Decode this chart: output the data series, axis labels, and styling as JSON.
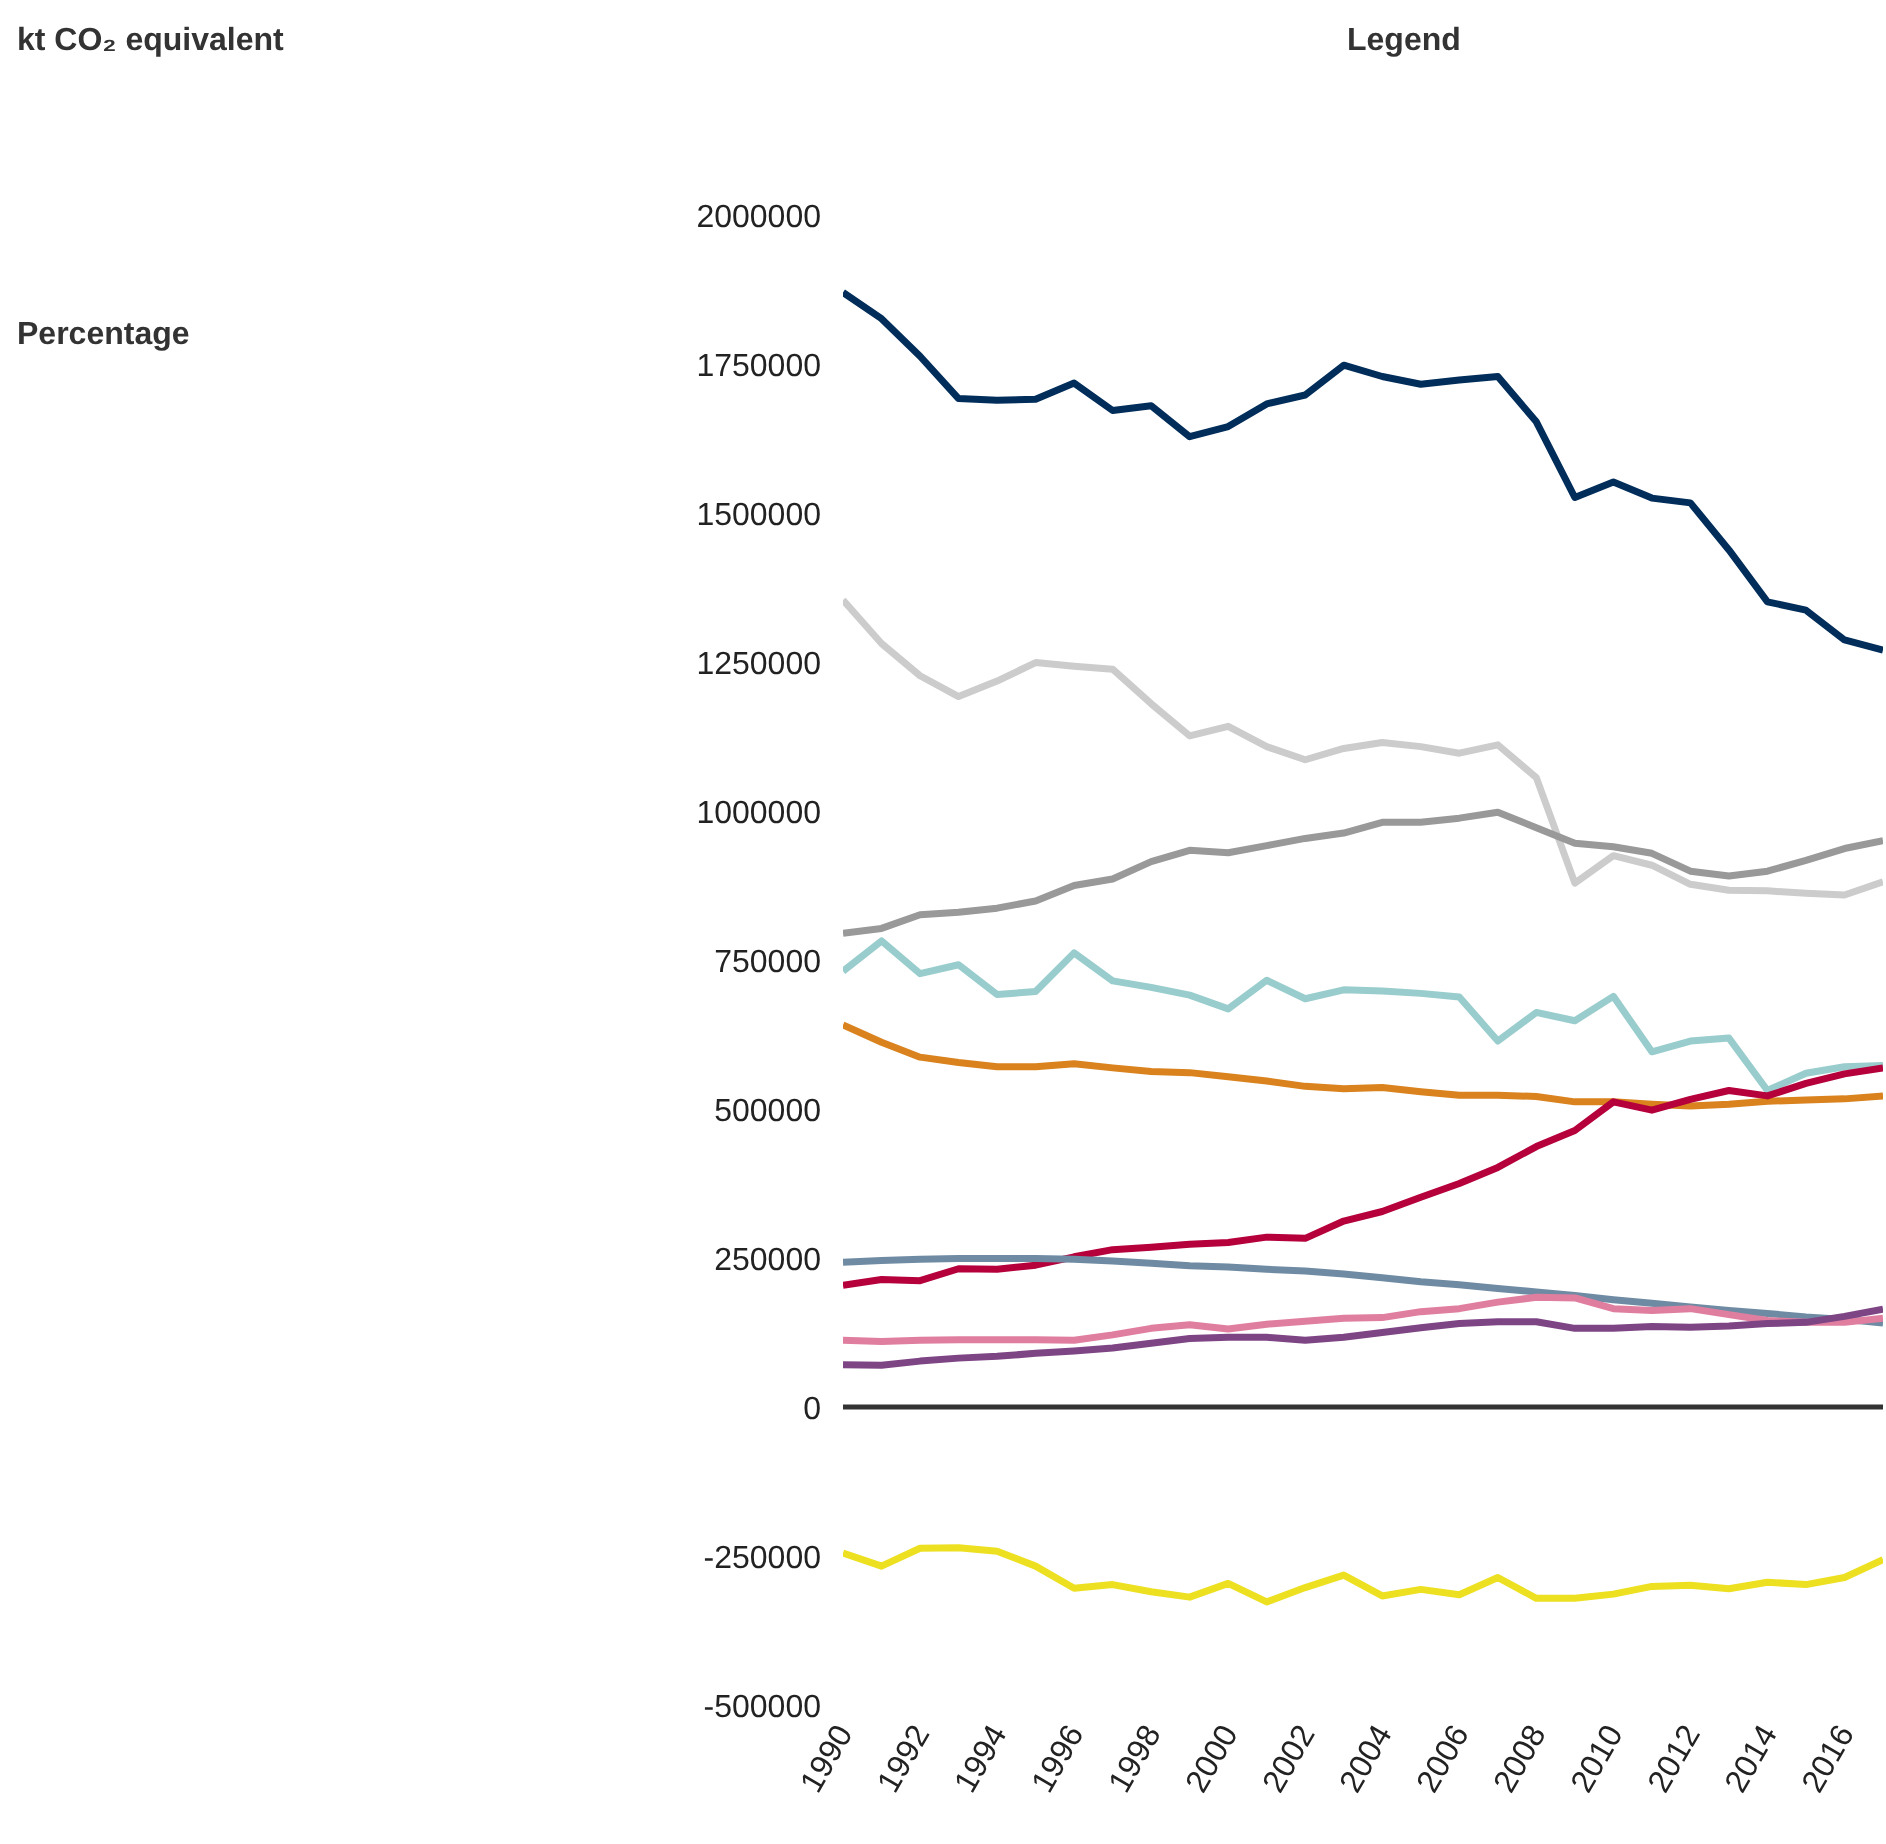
{
  "chart_data": {
    "type": "line",
    "legend_title": "Legend",
    "annotations": [
      "kt CO₂ equivalent",
      "Percentage"
    ],
    "x": [
      1990,
      1991,
      1992,
      1993,
      1994,
      1995,
      1996,
      1997,
      1998,
      1999,
      2000,
      2001,
      2002,
      2003,
      2004,
      2005,
      2006,
      2007,
      2008,
      2009,
      2010,
      2011,
      2012,
      2013,
      2014,
      2015,
      2016,
      2017
    ],
    "xlim": [
      1990,
      2017
    ],
    "xticks": [
      1990,
      1992,
      1994,
      1996,
      1998,
      2000,
      2002,
      2004,
      2006,
      2008,
      2010,
      2012,
      2014,
      2016
    ],
    "ylim": [
      -500000,
      2000000
    ],
    "yticks": [
      -500000,
      -250000,
      0,
      250000,
      500000,
      750000,
      1000000,
      1250000,
      1500000,
      1750000,
      2000000
    ],
    "grid": false,
    "line_style": "solid",
    "marker": "none",
    "ref_lines": [
      {
        "axis": "y",
        "value": 0,
        "label": null,
        "color": "#333333"
      }
    ],
    "series": [
      {
        "color": "#002d5a",
        "values": [
          1870000,
          1826000,
          1763000,
          1692000,
          1689000,
          1691000,
          1718000,
          1672000,
          1680000,
          1628000,
          1645000,
          1683000,
          1698000,
          1748000,
          1729000,
          1716000,
          1723000,
          1729000,
          1653000,
          1526000,
          1552000,
          1525000,
          1517000,
          1438000,
          1351000,
          1337000,
          1287000,
          1270000
        ]
      },
      {
        "color": "#cccccc",
        "values": [
          1354000,
          1281000,
          1227000,
          1192000,
          1218000,
          1249000,
          1243000,
          1238000,
          1180000,
          1126000,
          1142000,
          1108000,
          1086000,
          1105000,
          1115000,
          1108000,
          1097000,
          1111000,
          1056000,
          879000,
          925000,
          909000,
          877000,
          867000,
          866000,
          862000,
          859000,
          881000
        ]
      },
      {
        "color": "#999999",
        "values": [
          795000,
          803000,
          826000,
          830000,
          837000,
          849000,
          875000,
          886000,
          915000,
          934000,
          930000,
          942000,
          954000,
          963000,
          981000,
          981000,
          988000,
          998000,
          972000,
          946000,
          940000,
          929000,
          899000,
          891000,
          899000,
          917000,
          937000,
          950000
        ]
      },
      {
        "color": "#99cccc",
        "values": [
          731000,
          782000,
          727000,
          742000,
          692000,
          697000,
          762000,
          715000,
          704000,
          691000,
          668000,
          716000,
          685000,
          700000,
          698000,
          694000,
          688000,
          614000,
          662000,
          648000,
          689000,
          596000,
          614000,
          619000,
          531000,
          560000,
          571000,
          573000
        ]
      },
      {
        "color": "#d9821e",
        "values": [
          641000,
          612000,
          587000,
          578000,
          571000,
          571000,
          576000,
          569000,
          563000,
          561000,
          554000,
          547000,
          538000,
          534000,
          536000,
          529000,
          523000,
          523000,
          521000,
          512000,
          512000,
          508000,
          505000,
          508000,
          513000,
          515000,
          517000,
          522000
        ]
      },
      {
        "color": "#b5003c",
        "values": [
          204000,
          214000,
          212000,
          232000,
          231000,
          238000,
          252000,
          264000,
          268000,
          273000,
          276000,
          285000,
          283000,
          312000,
          328000,
          352000,
          375000,
          402000,
          437000,
          464000,
          512000,
          498000,
          516000,
          531000,
          522000,
          543000,
          559000,
          569000
        ]
      },
      {
        "color": "#6f8ba3",
        "values": [
          243000,
          246000,
          248000,
          249000,
          249000,
          249000,
          248000,
          245000,
          241000,
          237000,
          235000,
          231000,
          228000,
          223000,
          217000,
          210000,
          205000,
          199000,
          193000,
          187000,
          180000,
          174000,
          168000,
          162000,
          157000,
          151000,
          147000,
          141000
        ]
      },
      {
        "color": "#e07ea0",
        "values": [
          112000,
          110000,
          112000,
          113000,
          113000,
          113000,
          112000,
          121000,
          132000,
          138000,
          131000,
          139000,
          144000,
          149000,
          150000,
          160000,
          165000,
          176000,
          184000,
          183000,
          165000,
          162000,
          165000,
          155000,
          145000,
          142000,
          142000,
          149000
        ]
      },
      {
        "color": "#7e4585",
        "values": [
          71000,
          70000,
          77000,
          82000,
          85000,
          90000,
          94000,
          99000,
          107000,
          115000,
          117000,
          117000,
          112000,
          117000,
          125000,
          133000,
          140000,
          143000,
          143000,
          132000,
          132000,
          135000,
          134000,
          136000,
          140000,
          142000,
          152000,
          164000
        ]
      },
      {
        "color": "#ece021",
        "values": [
          -245000,
          -267000,
          -237000,
          -236000,
          -242000,
          -267000,
          -304000,
          -298000,
          -310000,
          -319000,
          -296000,
          -327000,
          -303000,
          -282000,
          -317000,
          -306000,
          -315000,
          -286000,
          -321000,
          -321000,
          -314000,
          -301000,
          -299000,
          -305000,
          -294000,
          -298000,
          -286000,
          -256000
        ]
      }
    ]
  }
}
